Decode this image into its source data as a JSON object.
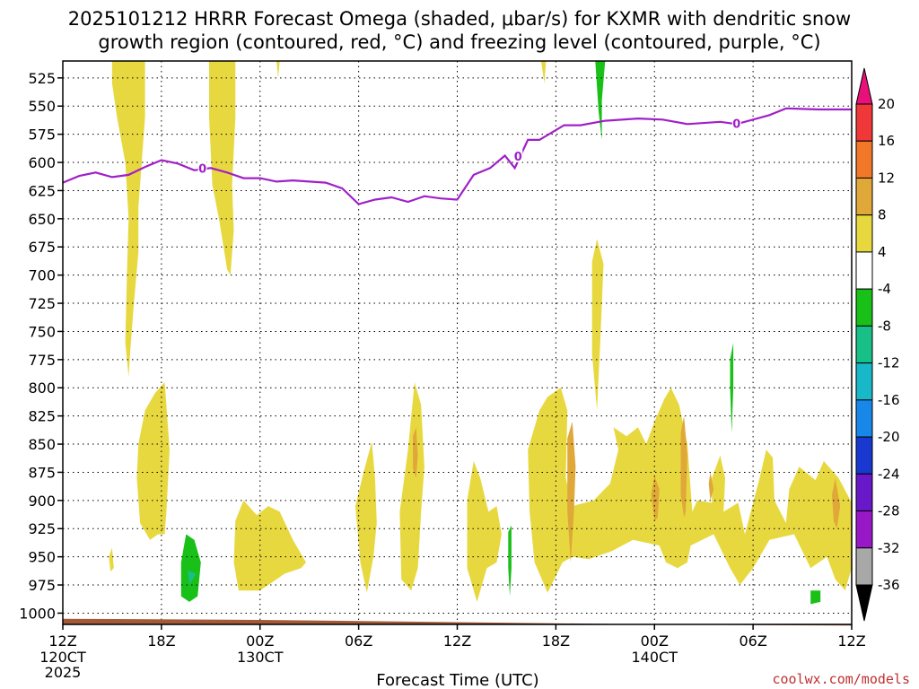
{
  "title_line1": "2025101212 HRRR Forecast Omega (shaded, μbar/s) for KXMR with dendritic snow",
  "title_line2": "growth region (contoured, red, °C) and freezing level (contoured, purple, °C)",
  "xlabel": "Forecast Time (UTC)",
  "credit": "coolwx.com/models",
  "x_ticks": [
    "12Z",
    "18Z",
    "00Z",
    "06Z",
    "12Z",
    "18Z",
    "00Z",
    "06Z",
    "12Z"
  ],
  "x_date_labels": [
    {
      "tick": 0,
      "lines": [
        "120CT",
        "2025"
      ]
    },
    {
      "tick": 2,
      "lines": [
        "130CT"
      ]
    },
    {
      "tick": 6,
      "lines": [
        "140CT"
      ]
    }
  ],
  "y_ticks": [
    525,
    550,
    575,
    600,
    625,
    650,
    675,
    700,
    725,
    750,
    775,
    800,
    825,
    850,
    875,
    900,
    925,
    950,
    975,
    1000
  ],
  "colorbar": {
    "labels": [
      "20",
      "16",
      "12",
      "8",
      "4",
      "-4",
      "-8",
      "-12",
      "-16",
      "-20",
      "-24",
      "-28",
      "-32",
      "-36"
    ],
    "colors": [
      "#e8107a",
      "#f03838",
      "#f07828",
      "#e0a838",
      "#e8d840",
      "#ffffff",
      "#18c018",
      "#18c088",
      "#18b8c8",
      "#1888e8",
      "#1838d0",
      "#6818c8",
      "#9818c8",
      "#a8a8a8",
      "#000000"
    ]
  },
  "chart_data": {
    "type": "area",
    "x_label": "Forecast Time (UTC)",
    "x_range_hours": [
      0,
      48
    ],
    "y_range_hPa": [
      1010,
      510
    ],
    "grid": true,
    "freezing_level": {
      "label": "0",
      "color": "#a020c8",
      "points": [
        [
          0,
          618
        ],
        [
          1,
          612
        ],
        [
          2,
          609
        ],
        [
          3,
          613
        ],
        [
          4,
          611
        ],
        [
          5,
          604
        ],
        [
          6,
          598
        ],
        [
          7,
          601
        ],
        [
          8,
          607
        ],
        [
          9,
          605
        ],
        [
          10,
          609
        ],
        [
          11,
          614
        ],
        [
          12,
          614
        ],
        [
          13,
          617
        ],
        [
          14,
          616
        ],
        [
          15,
          617
        ],
        [
          16,
          618
        ],
        [
          17,
          623
        ],
        [
          18,
          637
        ],
        [
          19,
          633
        ],
        [
          20,
          631
        ],
        [
          21,
          635
        ],
        [
          22,
          630
        ],
        [
          23,
          632
        ],
        [
          24,
          633
        ],
        [
          25,
          611
        ],
        [
          26,
          605
        ],
        [
          26.9,
          594
        ],
        [
          27.5,
          605
        ],
        [
          28.3,
          580
        ],
        [
          29,
          580
        ],
        [
          30.5,
          567
        ],
        [
          31.5,
          567
        ],
        [
          33,
          563
        ],
        [
          35,
          561
        ],
        [
          36.5,
          562
        ],
        [
          38,
          566
        ],
        [
          40,
          564
        ],
        [
          41,
          566
        ],
        [
          43,
          558
        ],
        [
          44,
          552
        ],
        [
          46,
          553
        ],
        [
          48,
          553
        ]
      ]
    },
    "omega_regions": [
      {
        "level": "4..8",
        "color": "#e8d840",
        "points": [
          [
            3,
            510
          ],
          [
            5,
            510
          ],
          [
            5,
            560
          ],
          [
            4.8,
            600
          ],
          [
            4.6,
            640
          ],
          [
            4.6,
            680
          ],
          [
            4.3,
            730
          ],
          [
            4.1,
            768
          ],
          [
            4,
            790
          ],
          [
            3.8,
            760
          ],
          [
            3.9,
            700
          ],
          [
            4,
            650
          ],
          [
            3.8,
            600
          ],
          [
            3.3,
            560
          ],
          [
            3,
            530
          ]
        ]
      },
      {
        "level": "4..8",
        "color": "#e8d840",
        "points": [
          [
            8.9,
            510
          ],
          [
            10.5,
            510
          ],
          [
            10.5,
            560
          ],
          [
            10.3,
            620
          ],
          [
            10.4,
            660
          ],
          [
            10.2,
            700
          ],
          [
            10,
            695
          ],
          [
            9.5,
            650
          ],
          [
            9.1,
            620
          ],
          [
            8.9,
            560
          ]
        ]
      },
      {
        "level": "4..8",
        "color": "#e8d840",
        "points": [
          [
            4.6,
            850
          ],
          [
            5,
            820
          ],
          [
            5.6,
            805
          ],
          [
            6.2,
            795
          ],
          [
            6.5,
            855
          ],
          [
            6.3,
            910
          ],
          [
            6.2,
            930
          ],
          [
            5.8,
            930
          ],
          [
            5.3,
            935
          ],
          [
            4.7,
            920
          ],
          [
            4.5,
            880
          ]
        ]
      },
      {
        "level": "4..8",
        "color": "#e8d840",
        "points": [
          [
            10.5,
            918
          ],
          [
            11,
            900
          ],
          [
            11.8,
            913
          ],
          [
            12.5,
            905
          ],
          [
            13.2,
            910
          ],
          [
            14,
            935
          ],
          [
            14.8,
            955
          ],
          [
            14.5,
            960
          ],
          [
            13.5,
            965
          ],
          [
            12,
            980
          ],
          [
            10.7,
            980
          ],
          [
            10.4,
            955
          ]
        ]
      },
      {
        "level": "4..8",
        "color": "#e8d840",
        "points": [
          [
            17.8,
            905
          ],
          [
            18.3,
            875
          ],
          [
            18.8,
            848
          ],
          [
            19,
            880
          ],
          [
            19.1,
            920
          ],
          [
            18.9,
            950
          ],
          [
            18.5,
            982
          ],
          [
            18.1,
            955
          ]
        ]
      },
      {
        "level": "4..8",
        "color": "#e8d840",
        "points": [
          [
            20.5,
            910
          ],
          [
            21,
            855
          ],
          [
            21.4,
            795
          ],
          [
            21.8,
            815
          ],
          [
            22,
            870
          ],
          [
            21.8,
            910
          ],
          [
            21.6,
            960
          ],
          [
            21.2,
            980
          ],
          [
            20.6,
            970
          ]
        ]
      },
      {
        "level": "4..8",
        "color": "#e8d840",
        "points": [
          [
            24.6,
            900
          ],
          [
            25,
            865
          ],
          [
            25.4,
            880
          ],
          [
            25.9,
            910
          ],
          [
            26.4,
            905
          ],
          [
            26.7,
            930
          ],
          [
            26.4,
            955
          ],
          [
            25.8,
            960
          ],
          [
            25.2,
            990
          ],
          [
            24.6,
            960
          ]
        ]
      },
      {
        "level": "4..8",
        "color": "#e8d840",
        "points": [
          [
            28.3,
            855
          ],
          [
            28.7,
            835
          ],
          [
            29,
            820
          ],
          [
            29.5,
            808
          ],
          [
            30.3,
            800
          ],
          [
            30.7,
            820
          ],
          [
            30.6,
            880
          ],
          [
            31,
            905
          ],
          [
            32.3,
            900
          ],
          [
            33.3,
            885
          ],
          [
            33.8,
            855
          ],
          [
            33.5,
            835
          ],
          [
            34.3,
            843
          ],
          [
            35,
            835
          ],
          [
            35.5,
            850
          ],
          [
            36,
            830
          ],
          [
            36.6,
            810
          ],
          [
            37,
            800
          ],
          [
            37.5,
            815
          ],
          [
            38,
            850
          ],
          [
            38.3,
            910
          ],
          [
            38.6,
            900
          ],
          [
            39.5,
            902
          ],
          [
            39.5,
            880
          ],
          [
            40,
            860
          ],
          [
            40.3,
            880
          ],
          [
            40.2,
            910
          ],
          [
            41.1,
            902
          ],
          [
            41.5,
            930
          ],
          [
            42.4,
            880
          ],
          [
            42.8,
            855
          ],
          [
            43.2,
            862
          ],
          [
            43.3,
            900
          ],
          [
            44,
            920
          ],
          [
            44.2,
            890
          ],
          [
            44.8,
            870
          ],
          [
            45.8,
            882
          ],
          [
            46.3,
            865
          ],
          [
            47.2,
            880
          ],
          [
            48,
            902
          ],
          [
            48,
            960
          ],
          [
            47.6,
            980
          ],
          [
            47,
            970
          ],
          [
            46.5,
            950
          ],
          [
            45.5,
            960
          ],
          [
            44.5,
            930
          ],
          [
            43,
            935
          ],
          [
            42,
            960
          ],
          [
            41.2,
            975
          ],
          [
            40.6,
            960
          ],
          [
            39.6,
            930
          ],
          [
            38.2,
            940
          ],
          [
            38,
            955
          ],
          [
            37.4,
            960
          ],
          [
            36.7,
            955
          ],
          [
            36.3,
            940
          ],
          [
            34.7,
            935
          ],
          [
            33.4,
            945
          ],
          [
            32,
            952
          ],
          [
            31,
            950
          ],
          [
            30.4,
            955
          ],
          [
            29.5,
            982
          ],
          [
            28.7,
            955
          ],
          [
            28.4,
            910
          ]
        ]
      },
      {
        "level": "4..8",
        "color": "#e8d840",
        "points": [
          [
            32.2,
            688
          ],
          [
            32.5,
            668
          ],
          [
            32.9,
            690
          ],
          [
            32.7,
            760
          ],
          [
            32.5,
            820
          ],
          [
            32.2,
            770
          ],
          [
            32.2,
            720
          ]
        ]
      },
      {
        "level": "4..8",
        "color": "#e8d840",
        "points": [
          [
            2.8,
            950
          ],
          [
            3,
            942
          ],
          [
            3.1,
            960
          ],
          [
            2.9,
            963
          ]
        ]
      },
      {
        "level": "4..8",
        "color": "#e8d840",
        "points": [
          [
            13,
            510
          ],
          [
            13.2,
            510
          ],
          [
            13.1,
            525
          ]
        ]
      },
      {
        "level": "4..8",
        "color": "#e8d840",
        "points": [
          [
            29.1,
            510
          ],
          [
            29.4,
            510
          ],
          [
            29.3,
            530
          ]
        ]
      },
      {
        "level": "8..12",
        "color": "#e0a838",
        "points": [
          [
            21.3,
            843
          ],
          [
            21.5,
            835
          ],
          [
            21.6,
            860
          ],
          [
            21.5,
            880
          ],
          [
            21.3,
            872
          ]
        ]
      },
      {
        "level": "8..12",
        "color": "#e0a838",
        "points": [
          [
            30.7,
            845
          ],
          [
            31,
            830
          ],
          [
            31.2,
            870
          ],
          [
            31.1,
            910
          ],
          [
            30.9,
            955
          ],
          [
            30.7,
            910
          ]
        ]
      },
      {
        "level": "8..12",
        "color": "#e0a838",
        "points": [
          [
            35.8,
            895
          ],
          [
            36,
            878
          ],
          [
            36.3,
            890
          ],
          [
            36.2,
            915
          ],
          [
            36,
            918
          ]
        ]
      },
      {
        "level": "8..12",
        "color": "#e0a838",
        "points": [
          [
            37.6,
            840
          ],
          [
            37.8,
            825
          ],
          [
            38,
            860
          ],
          [
            37.9,
            910
          ],
          [
            37.8,
            915
          ],
          [
            37.6,
            895
          ]
        ]
      },
      {
        "level": "8..12",
        "color": "#e0a838",
        "points": [
          [
            46.8,
            895
          ],
          [
            47,
            880
          ],
          [
            47.3,
            905
          ],
          [
            47.1,
            925
          ],
          [
            46.9,
            918
          ]
        ]
      },
      {
        "level": "8..12",
        "color": "#e0a838",
        "points": [
          [
            39.3,
            885
          ],
          [
            39.4,
            875
          ],
          [
            39.6,
            890
          ],
          [
            39.4,
            900
          ]
        ]
      },
      {
        "level": "-4..-8",
        "color": "#18c018",
        "points": [
          [
            7.2,
            955
          ],
          [
            7.5,
            930
          ],
          [
            8,
            935
          ],
          [
            8.4,
            955
          ],
          [
            8.2,
            985
          ],
          [
            7.7,
            990
          ],
          [
            7.2,
            985
          ]
        ]
      },
      {
        "level": "-4..-8",
        "color": "#18c018",
        "points": [
          [
            32.4,
            510
          ],
          [
            33,
            510
          ],
          [
            32.8,
            545
          ],
          [
            32.8,
            580
          ],
          [
            32.6,
            555
          ]
        ]
      },
      {
        "level": "-4..-8",
        "color": "#18c018",
        "points": [
          [
            40.6,
            775
          ],
          [
            40.8,
            760
          ],
          [
            40.8,
            800
          ],
          [
            40.7,
            840
          ],
          [
            40.6,
            800
          ]
        ]
      },
      {
        "level": "-4..-8",
        "color": "#18c018",
        "points": [
          [
            27.1,
            928
          ],
          [
            27.3,
            922
          ],
          [
            27.3,
            960
          ],
          [
            27.2,
            985
          ],
          [
            27.1,
            960
          ]
        ]
      },
      {
        "level": "-4..-8",
        "color": "#18c018",
        "points": [
          [
            45.5,
            980
          ],
          [
            46.1,
            980
          ],
          [
            46.1,
            990
          ],
          [
            45.5,
            992
          ]
        ]
      },
      {
        "level": "-8..-12",
        "color": "#18c088",
        "points": [
          [
            7.6,
            962
          ],
          [
            8.1,
            965
          ],
          [
            7.7,
            975
          ]
        ]
      }
    ],
    "terrain": {
      "color": "#a45a38",
      "top_hPa": [
        [
          0,
          1005
        ],
        [
          12,
          1006
        ],
        [
          24,
          1008
        ],
        [
          36,
          1010
        ],
        [
          48,
          1011
        ]
      ]
    }
  }
}
